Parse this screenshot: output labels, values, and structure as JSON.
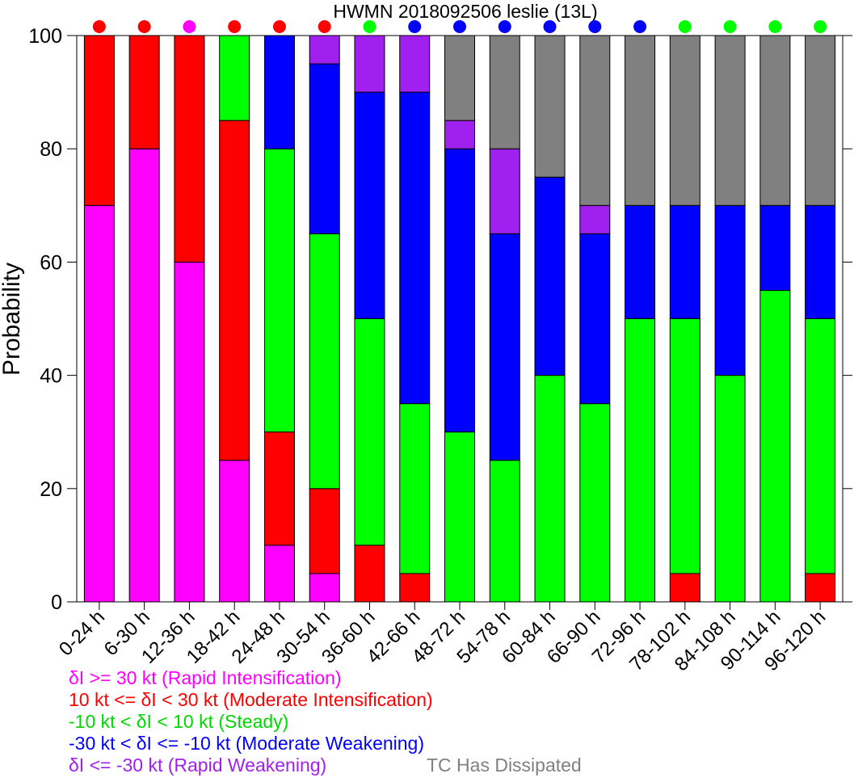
{
  "chart_data": {
    "type": "bar",
    "stacked": true,
    "title": "HWMN 2018092506 leslie (13L)",
    "ylabel": "Probability",
    "xlabel": "",
    "ylim": [
      0,
      100
    ],
    "yticks": [
      0,
      20,
      40,
      60,
      80,
      100
    ],
    "grid": false,
    "categories": [
      "0-24 h",
      "6-30 h",
      "12-36 h",
      "18-42 h",
      "24-48 h",
      "30-54 h",
      "36-60 h",
      "42-66 h",
      "48-72 h",
      "54-78 h",
      "60-84 h",
      "66-90 h",
      "72-96 h",
      "78-102 h",
      "84-108 h",
      "90-114 h",
      "96-120 h"
    ],
    "series": [
      {
        "name": "δI >= 30 kt (Rapid Intensification)",
        "color": "#ff00ff",
        "values": [
          70,
          80,
          60,
          25,
          10,
          5,
          0,
          0,
          0,
          0,
          0,
          0,
          0,
          0,
          0,
          0,
          0
        ]
      },
      {
        "name": "10 kt <= δI < 30 kt (Moderate Intensification)",
        "color": "#ff0000",
        "values": [
          30,
          20,
          40,
          60,
          20,
          15,
          10,
          5,
          0,
          0,
          0,
          0,
          0,
          5,
          0,
          0,
          5
        ]
      },
      {
        "name": "-10 kt < δI < 10 kt (Steady)",
        "color": "#00ff00",
        "values": [
          0,
          0,
          0,
          15,
          50,
          45,
          40,
          30,
          30,
          25,
          40,
          35,
          50,
          45,
          40,
          55,
          45
        ]
      },
      {
        "name": "-30 kt < δI <= -10 kt (Moderate Weakening)",
        "color": "#0000ff",
        "values": [
          0,
          0,
          0,
          0,
          20,
          30,
          40,
          55,
          50,
          40,
          35,
          30,
          20,
          20,
          30,
          15,
          20
        ]
      },
      {
        "name": "δI <= -30 kt (Rapid Weakening)",
        "color": "#a020f0",
        "values": [
          0,
          0,
          0,
          0,
          0,
          5,
          10,
          10,
          5,
          15,
          0,
          5,
          0,
          0,
          0,
          0,
          0
        ]
      },
      {
        "name": "TC Has Dissipated",
        "color": "#808080",
        "values": [
          0,
          0,
          0,
          0,
          0,
          0,
          0,
          0,
          15,
          20,
          25,
          30,
          30,
          30,
          30,
          30,
          30
        ]
      }
    ],
    "top_markers": [
      "#ff0000",
      "#ff0000",
      "#ff00ff",
      "#ff0000",
      "#ff0000",
      "#ff0000",
      "#00ff00",
      "#0000ff",
      "#0000ff",
      "#0000ff",
      "#0000ff",
      "#0000ff",
      "#0000ff",
      "#00ff00",
      "#00ff00",
      "#00ff00",
      "#00ff00"
    ]
  }
}
